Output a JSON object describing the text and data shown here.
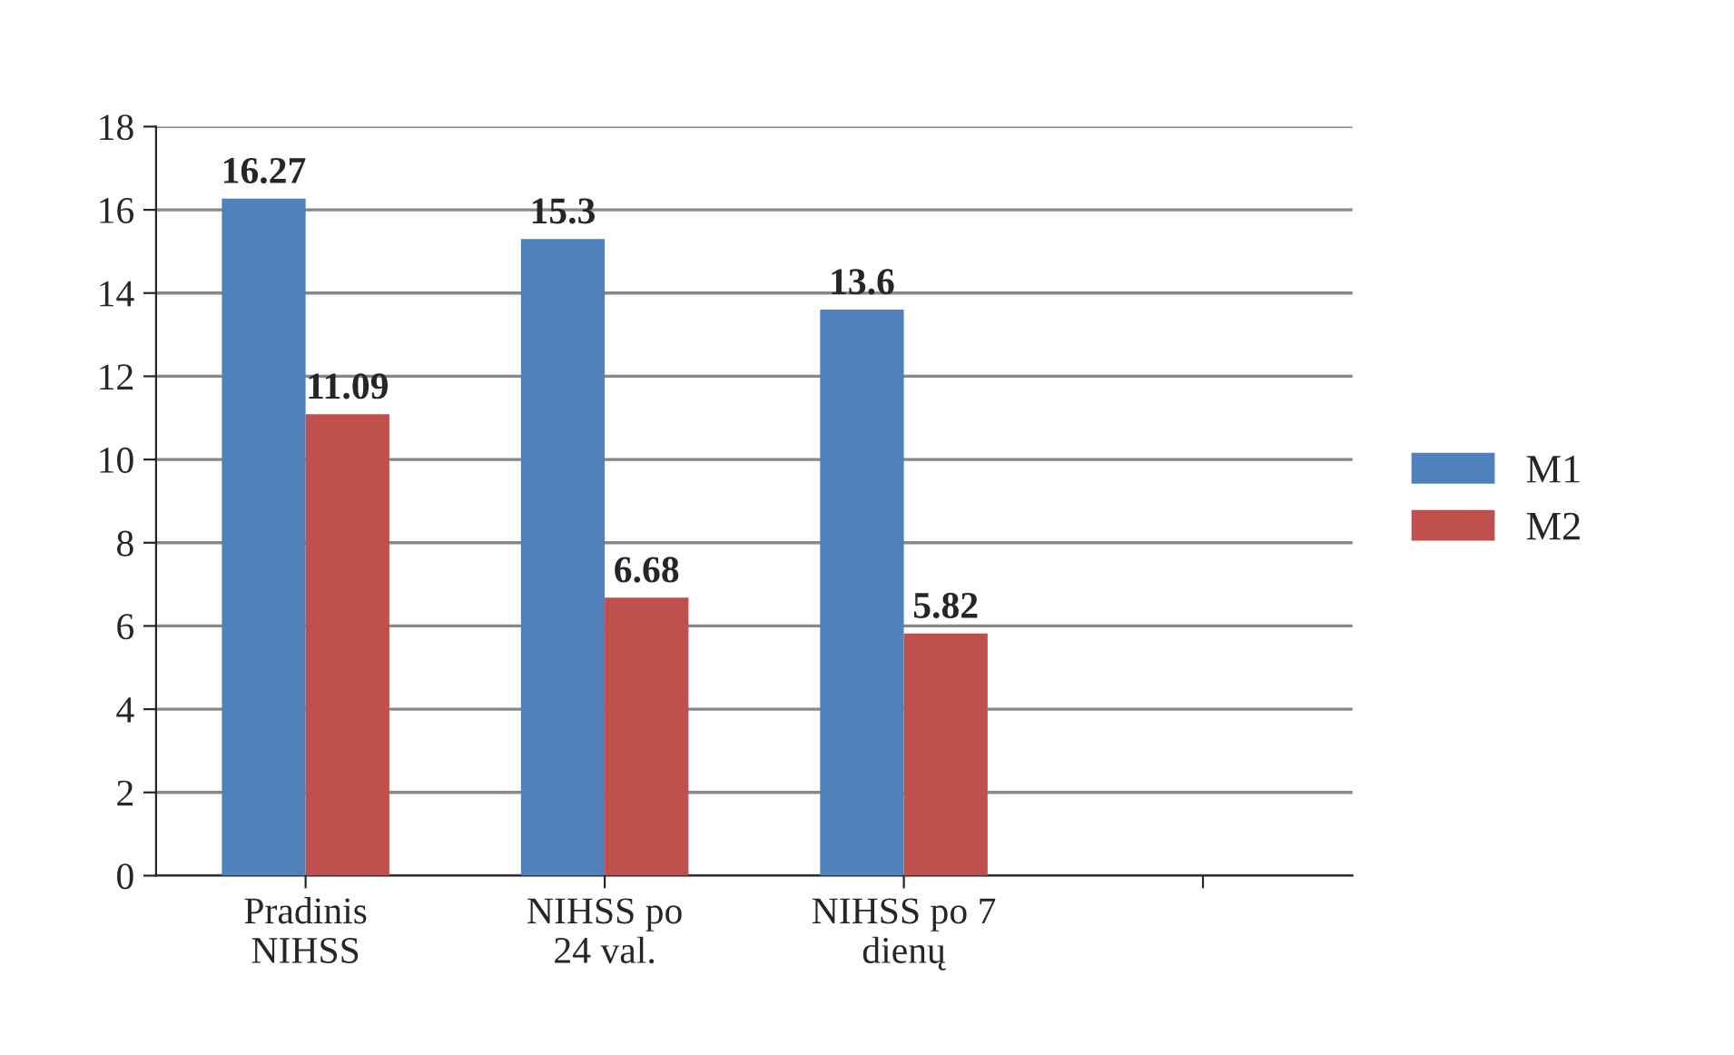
{
  "chart_data": {
    "type": "bar",
    "categories": [
      "Pradinis\nNIHSS",
      "NIHSS po\n24 val.",
      "NIHSS po 7\ndienų",
      null
    ],
    "series": [
      {
        "name": "M1",
        "color": "#4f81bd",
        "values": [
          16.27,
          15.3,
          13.6,
          null
        ]
      },
      {
        "name": "M2",
        "color": "#c0504d",
        "values": [
          11.09,
          6.68,
          5.82,
          null
        ]
      }
    ],
    "ylim": [
      0,
      18
    ],
    "yticks": [
      0,
      2,
      4,
      6,
      8,
      10,
      12,
      14,
      16,
      18
    ],
    "grid": "y",
    "legend": "right",
    "data_labels": true
  }
}
